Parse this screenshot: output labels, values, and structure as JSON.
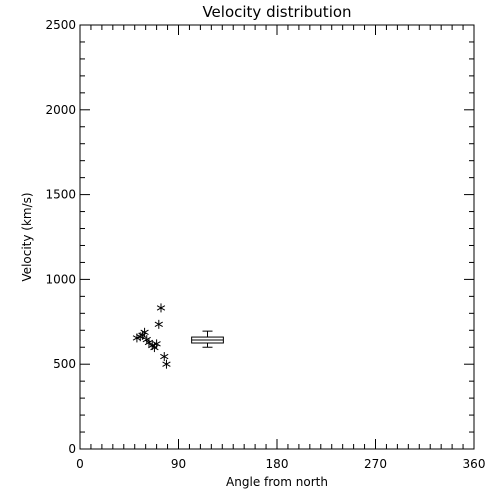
{
  "chart_data": {
    "type": "scatter",
    "title": "Velocity distribution",
    "xlabel": "Angle from north",
    "ylabel": "Velocity (km/s)",
    "xlim": [
      0,
      360
    ],
    "ylim": [
      0,
      2500
    ],
    "x_ticks": [
      "0",
      "90",
      "180",
      "270",
      "360"
    ],
    "y_ticks": [
      "0",
      "500",
      "1000",
      "1500",
      "2000",
      "2500"
    ],
    "grid": false,
    "marker": "asterisk",
    "points": [
      {
        "x": 52,
        "y": 655
      },
      {
        "x": 55,
        "y": 662
      },
      {
        "x": 57,
        "y": 670
      },
      {
        "x": 59,
        "y": 688
      },
      {
        "x": 61,
        "y": 645
      },
      {
        "x": 63,
        "y": 628
      },
      {
        "x": 66,
        "y": 610
      },
      {
        "x": 68,
        "y": 598
      },
      {
        "x": 70,
        "y": 620
      },
      {
        "x": 72,
        "y": 735
      },
      {
        "x": 74,
        "y": 832
      },
      {
        "x": 77,
        "y": 545
      },
      {
        "x": 79,
        "y": 500
      }
    ],
    "box": {
      "x_min": 102,
      "x_max": 131,
      "q1": 625,
      "q3": 660,
      "median": 643,
      "whisker_low": 600,
      "whisker_high": 695
    }
  }
}
